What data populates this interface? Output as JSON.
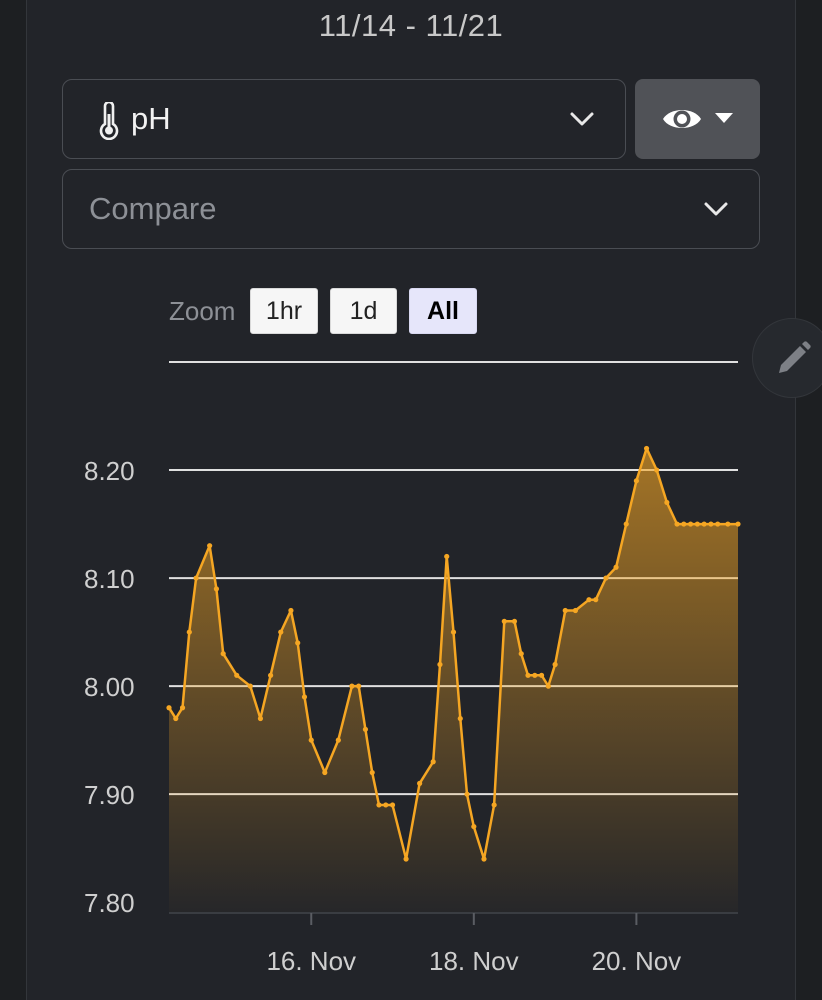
{
  "header": {
    "date_range": "11/14 - 11/21"
  },
  "metric_select": {
    "icon": "thermometer-icon",
    "value": "pH"
  },
  "view_button": {
    "icon": "eye-icon"
  },
  "compare_select": {
    "placeholder": "Compare"
  },
  "zoom": {
    "label": "Zoom",
    "buttons": [
      "1hr",
      "1d",
      "All"
    ],
    "selected": "All"
  },
  "edit_button": {
    "icon": "pencil-icon"
  },
  "colors": {
    "line": "#f5a623",
    "background": "#222429",
    "selected_zoom": "#e6e6fa",
    "grid": "#e0e0e0"
  },
  "chart_data": {
    "type": "area",
    "title": "",
    "xlabel": "",
    "ylabel": "",
    "x_ticks": [
      {
        "date": "2023-11-16",
        "label": "16. Nov"
      },
      {
        "date": "2023-11-18",
        "label": "18. Nov"
      },
      {
        "date": "2023-11-20",
        "label": "20. Nov"
      }
    ],
    "xlim": [
      "2023-11-14T06:00",
      "2023-11-21T06:00"
    ],
    "y_ticks": [
      7.8,
      7.9,
      8.0,
      8.1,
      8.2
    ],
    "y_tick_labels": [
      "7.80",
      "7.90",
      "8.00",
      "8.10",
      "8.20"
    ],
    "ylim": [
      7.79,
      8.3
    ],
    "grid": true,
    "legend": "none",
    "series": [
      {
        "x": [
          "2023-11-14T06:00",
          "2023-11-14T08:00",
          "2023-11-14T10:00",
          "2023-11-14T12:00",
          "2023-11-14T14:00",
          "2023-11-14T18:00",
          "2023-11-14T20:00",
          "2023-11-14T22:00",
          "2023-11-15T02:00",
          "2023-11-15T06:00",
          "2023-11-15T09:00",
          "2023-11-15T12:00",
          "2023-11-15T15:00",
          "2023-11-15T18:00",
          "2023-11-15T20:00",
          "2023-11-15T22:00",
          "2023-11-16T00:00",
          "2023-11-16T04:00",
          "2023-11-16T08:00",
          "2023-11-16T12:00",
          "2023-11-16T14:00",
          "2023-11-16T16:00",
          "2023-11-16T18:00",
          "2023-11-16T20:00",
          "2023-11-16T22:00",
          "2023-11-17T00:00",
          "2023-11-17T04:00",
          "2023-11-17T08:00",
          "2023-11-17T12:00",
          "2023-11-17T14:00",
          "2023-11-17T16:00",
          "2023-11-17T18:00",
          "2023-11-17T20:00",
          "2023-11-17T22:00",
          "2023-11-18T00:00",
          "2023-11-18T03:00",
          "2023-11-18T06:00",
          "2023-11-18T09:00",
          "2023-11-18T12:00",
          "2023-11-18T14:00",
          "2023-11-18T16:00",
          "2023-11-18T18:00",
          "2023-11-18T20:00",
          "2023-11-18T22:00",
          "2023-11-19T00:00",
          "2023-11-19T03:00",
          "2023-11-19T06:00",
          "2023-11-19T10:00",
          "2023-11-19T12:00",
          "2023-11-19T15:00",
          "2023-11-19T18:00",
          "2023-11-19T21:00",
          "2023-11-20T00:00",
          "2023-11-20T03:00",
          "2023-11-20T06:00",
          "2023-11-20T09:00",
          "2023-11-20T12:00",
          "2023-11-20T14:00",
          "2023-11-20T16:00",
          "2023-11-20T18:00",
          "2023-11-20T20:00",
          "2023-11-20T22:00",
          "2023-11-21T00:00",
          "2023-11-21T03:00",
          "2023-11-21T06:00"
        ],
        "values": [
          7.98,
          7.97,
          7.98,
          8.05,
          8.1,
          8.13,
          8.09,
          8.03,
          8.01,
          8.0,
          7.97,
          8.01,
          8.05,
          8.07,
          8.04,
          7.99,
          7.95,
          7.92,
          7.95,
          8.0,
          8.0,
          7.96,
          7.92,
          7.89,
          7.89,
          7.89,
          7.84,
          7.91,
          7.93,
          8.02,
          8.12,
          8.05,
          7.97,
          7.9,
          7.87,
          7.84,
          7.89,
          8.06,
          8.06,
          8.03,
          8.01,
          8.01,
          8.01,
          8.0,
          8.02,
          8.07,
          8.07,
          8.08,
          8.08,
          8.1,
          8.11,
          8.15,
          8.19,
          8.22,
          8.2,
          8.17,
          8.15,
          8.15,
          8.15,
          8.15,
          8.15,
          8.15,
          8.15,
          8.15,
          8.15
        ]
      }
    ]
  }
}
